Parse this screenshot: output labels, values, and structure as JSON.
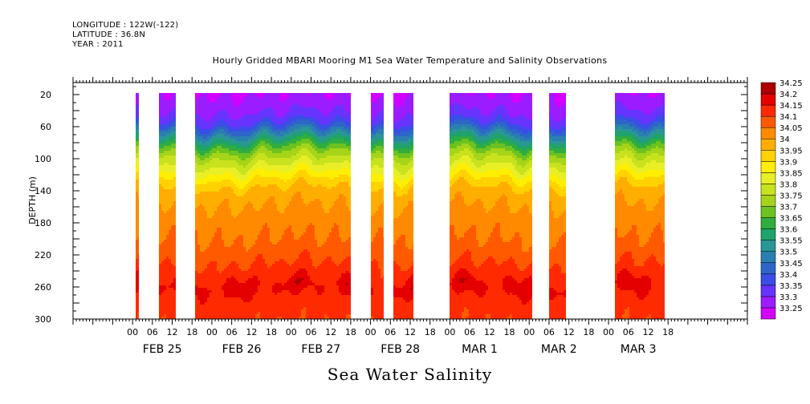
{
  "header": {
    "longitude": "LONGITUDE : 122W(-122)",
    "latitude": "LATITUDE : 36.8N",
    "year": "YEAR : 2011"
  },
  "chart_data": {
    "type": "heatmap",
    "title": "Hourly Gridded MBARI Mooring M1 Sea Water Temperature and Salinity Observations",
    "bottom_title": "Sea Water Salinity",
    "ylabel": "DEPTH (m)",
    "xlabel": "",
    "y_axis": {
      "range": [
        300,
        5
      ],
      "inverted": true,
      "ticks": [
        20,
        60,
        100,
        140,
        180,
        220,
        260,
        300
      ]
    },
    "x_axis": {
      "range_hours": [
        -18,
        186
      ],
      "hour_ticks": [
        0,
        6,
        12,
        18
      ],
      "hour_labels": [
        "00",
        "06",
        "12",
        "18"
      ],
      "days": [
        "FEB 25",
        "FEB 26",
        "FEB 27",
        "FEB 28",
        "MAR  1",
        "MAR  2",
        "MAR  3"
      ],
      "label_note": "x position measured in hours from 00 UTC FEB 25"
    },
    "data_segments_hours": [
      [
        1,
        2
      ],
      [
        8,
        13
      ],
      [
        19,
        54
      ],
      [
        48,
        52
      ],
      [
        53,
        66
      ],
      [
        72,
        76
      ],
      [
        79,
        85
      ],
      [
        96,
        121
      ],
      [
        126,
        131
      ],
      [
        146,
        161
      ]
    ],
    "colorbar": {
      "levels": [
        33.25,
        33.3,
        33.35,
        33.4,
        33.45,
        33.5,
        33.55,
        33.6,
        33.65,
        33.7,
        33.75,
        33.8,
        33.85,
        33.9,
        33.95,
        34,
        34.05,
        34.1,
        34.15,
        34.2,
        34.25
      ],
      "colors": [
        "#d400ff",
        "#9b1cff",
        "#6733ff",
        "#3a4de6",
        "#2e66c8",
        "#2b7fb0",
        "#2a9696",
        "#1fa36a",
        "#30ad3f",
        "#6cc220",
        "#a5d419",
        "#c8e21e",
        "#e8ef27",
        "#ffee00",
        "#ffd200",
        "#ffae00",
        "#ff8a00",
        "#ff5a00",
        "#ff2a00",
        "#e50000",
        "#ad0000"
      ]
    },
    "profile_salinity": [
      {
        "depth": 5,
        "value": 33.28
      },
      {
        "depth": 20,
        "value": 33.3
      },
      {
        "depth": 40,
        "value": 33.34
      },
      {
        "depth": 55,
        "value": 33.4
      },
      {
        "depth": 65,
        "value": 33.5
      },
      {
        "depth": 75,
        "value": 33.6
      },
      {
        "depth": 85,
        "value": 33.7
      },
      {
        "depth": 95,
        "value": 33.78
      },
      {
        "depth": 110,
        "value": 33.86
      },
      {
        "depth": 125,
        "value": 33.95
      },
      {
        "depth": 140,
        "value": 34.02
      },
      {
        "depth": 170,
        "value": 34.07
      },
      {
        "depth": 200,
        "value": 34.1
      },
      {
        "depth": 225,
        "value": 34.14
      },
      {
        "depth": 245,
        "value": 34.18
      },
      {
        "depth": 260,
        "value": 34.22
      },
      {
        "depth": 275,
        "value": 34.18
      },
      {
        "depth": 300,
        "value": 34.16
      }
    ]
  }
}
